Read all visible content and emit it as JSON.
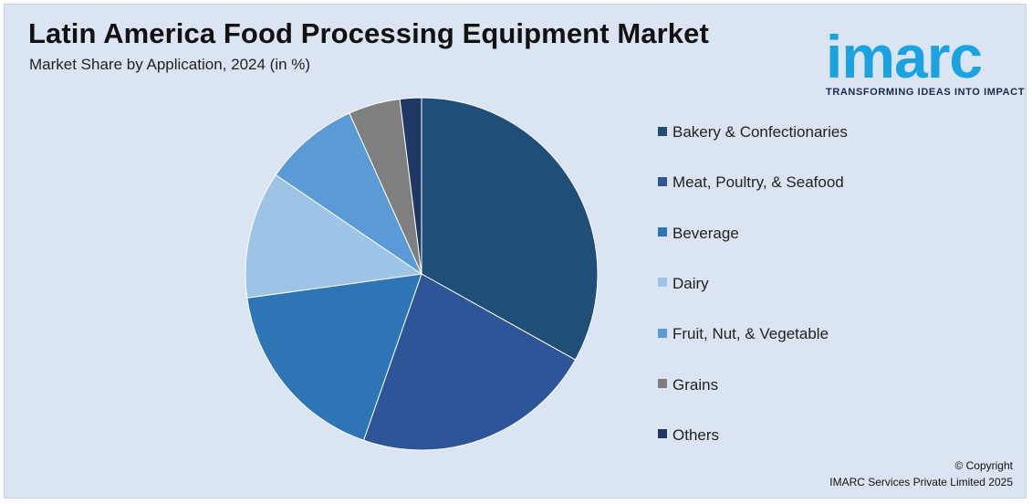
{
  "header": {
    "title": "Latin America Food Processing Equipment Market",
    "subtitle": "Market Share by Application, 2024 (in %)"
  },
  "logo": {
    "word": "imarc",
    "tagline": "TRANSFORMING IDEAS INTO IMPACT",
    "color": "#1ba3e1"
  },
  "chart_data": {
    "type": "pie",
    "title": "Latin America Food Processing Equipment Market",
    "subtitle": "Market Share by Application, 2024 (in %)",
    "start_angle_deg": 0,
    "direction": "clockwise",
    "legend_position": "right",
    "categories": [
      "Bakery & Confectionaries",
      "Meat, Poultry, & Seafood",
      "Beverage",
      "Dairy",
      "Fruit, Nut, & Vegetable",
      "Grains",
      "Others"
    ],
    "values": [
      33.5,
      22.5,
      17.7,
      11.8,
      8.9,
      4.8,
      2.0
    ],
    "colors": [
      "#1f4e79",
      "#2e5597",
      "#2e75b6",
      "#9dc3e6",
      "#5b9bd5",
      "#7f7f7f",
      "#203864"
    ]
  },
  "footer": {
    "copyright_line1": "© Copyright",
    "copyright_line2": "IMARC Services Private Limited 2025"
  }
}
